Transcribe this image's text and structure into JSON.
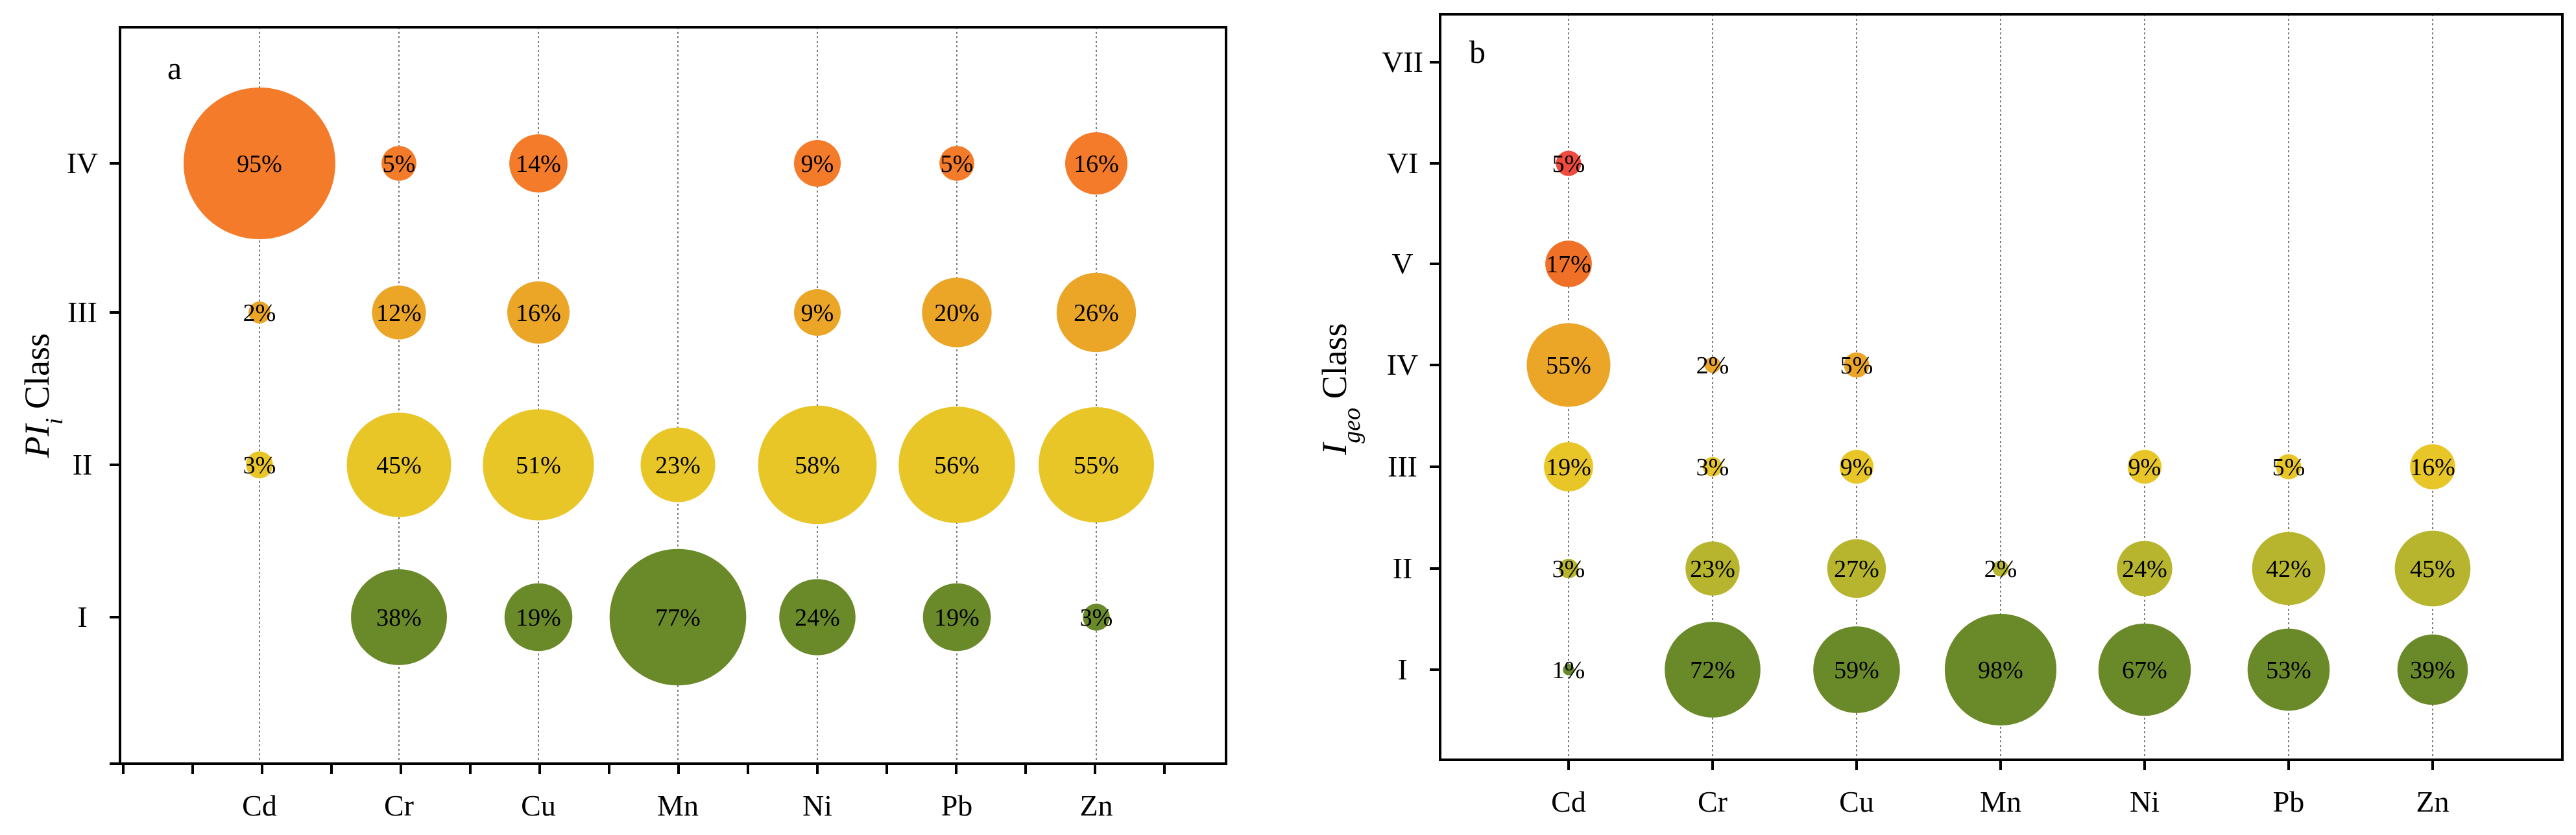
{
  "chart_data": [
    {
      "type": "scatter",
      "subtype": "bubble",
      "panel_label": "a",
      "ylabel_main": "PI",
      "ylabel_sub": "i",
      "ylabel_rest": " Class",
      "xlabel": "",
      "categories": [
        "Cd",
        "Cr",
        "Cu",
        "Mn",
        "Ni",
        "Pb",
        "Zn"
      ],
      "classes": [
        "I",
        "II",
        "III",
        "IV"
      ],
      "class_colors": [
        "#6a8a2a",
        "#e9c627",
        "#eba628",
        "#f47b29"
      ],
      "points": [
        {
          "x": "Cd",
          "class": "IV",
          "value": 95,
          "label": "95%"
        },
        {
          "x": "Cd",
          "class": "III",
          "value": 2,
          "label": "2%"
        },
        {
          "x": "Cd",
          "class": "II",
          "value": 3,
          "label": "3%"
        },
        {
          "x": "Cr",
          "class": "IV",
          "value": 5,
          "label": "5%"
        },
        {
          "x": "Cr",
          "class": "III",
          "value": 12,
          "label": "12%"
        },
        {
          "x": "Cr",
          "class": "II",
          "value": 45,
          "label": "45%"
        },
        {
          "x": "Cr",
          "class": "I",
          "value": 38,
          "label": "38%"
        },
        {
          "x": "Cu",
          "class": "IV",
          "value": 14,
          "label": "14%"
        },
        {
          "x": "Cu",
          "class": "III",
          "value": 16,
          "label": "16%"
        },
        {
          "x": "Cu",
          "class": "II",
          "value": 51,
          "label": "51%"
        },
        {
          "x": "Cu",
          "class": "I",
          "value": 19,
          "label": "19%"
        },
        {
          "x": "Mn",
          "class": "II",
          "value": 23,
          "label": "23%"
        },
        {
          "x": "Mn",
          "class": "I",
          "value": 77,
          "label": "77%"
        },
        {
          "x": "Ni",
          "class": "IV",
          "value": 9,
          "label": "9%"
        },
        {
          "x": "Ni",
          "class": "III",
          "value": 9,
          "label": "9%"
        },
        {
          "x": "Ni",
          "class": "II",
          "value": 58,
          "label": "58%"
        },
        {
          "x": "Ni",
          "class": "I",
          "value": 24,
          "label": "24%"
        },
        {
          "x": "Pb",
          "class": "IV",
          "value": 5,
          "label": "5%"
        },
        {
          "x": "Pb",
          "class": "III",
          "value": 20,
          "label": "20%"
        },
        {
          "x": "Pb",
          "class": "II",
          "value": 56,
          "label": "56%"
        },
        {
          "x": "Pb",
          "class": "I",
          "value": 19,
          "label": "19%"
        },
        {
          "x": "Zn",
          "class": "IV",
          "value": 16,
          "label": "16%"
        },
        {
          "x": "Zn",
          "class": "III",
          "value": 26,
          "label": "26%"
        },
        {
          "x": "Zn",
          "class": "II",
          "value": 55,
          "label": "55%"
        },
        {
          "x": "Zn",
          "class": "I",
          "value": 3,
          "label": "3%"
        }
      ]
    },
    {
      "type": "scatter",
      "subtype": "bubble",
      "panel_label": "b",
      "ylabel_main": "I",
      "ylabel_sub": "geo",
      "ylabel_rest": " Class",
      "xlabel": "",
      "categories": [
        "Cd",
        "Cr",
        "Cu",
        "Mn",
        "Ni",
        "Pb",
        "Zn"
      ],
      "classes": [
        "I",
        "II",
        "III",
        "IV",
        "V",
        "VI",
        "VII"
      ],
      "class_colors": [
        "#6a8a2a",
        "#b6b52d",
        "#e9c627",
        "#eba628",
        "#f07028",
        "#ef4b3e",
        "#e03a3a"
      ],
      "points": [
        {
          "x": "Cd",
          "class": "VI",
          "value": 5,
          "label": "5%"
        },
        {
          "x": "Cd",
          "class": "V",
          "value": 17,
          "label": "17%"
        },
        {
          "x": "Cd",
          "class": "IV",
          "value": 55,
          "label": "55%"
        },
        {
          "x": "Cd",
          "class": "III",
          "value": 19,
          "label": "19%"
        },
        {
          "x": "Cd",
          "class": "II",
          "value": 3,
          "label": "3%"
        },
        {
          "x": "Cd",
          "class": "I",
          "value": 1,
          "label": "1%"
        },
        {
          "x": "Cr",
          "class": "IV",
          "value": 2,
          "label": "2%"
        },
        {
          "x": "Cr",
          "class": "III",
          "value": 3,
          "label": "3%"
        },
        {
          "x": "Cr",
          "class": "II",
          "value": 23,
          "label": "23%"
        },
        {
          "x": "Cr",
          "class": "I",
          "value": 72,
          "label": "72%"
        },
        {
          "x": "Cu",
          "class": "IV",
          "value": 5,
          "label": "5%"
        },
        {
          "x": "Cu",
          "class": "III",
          "value": 9,
          "label": "9%"
        },
        {
          "x": "Cu",
          "class": "II",
          "value": 27,
          "label": "27%"
        },
        {
          "x": "Cu",
          "class": "I",
          "value": 59,
          "label": "59%"
        },
        {
          "x": "Mn",
          "class": "II",
          "value": 2,
          "label": "2%"
        },
        {
          "x": "Mn",
          "class": "I",
          "value": 98,
          "label": "98%"
        },
        {
          "x": "Ni",
          "class": "III",
          "value": 9,
          "label": "9%"
        },
        {
          "x": "Ni",
          "class": "II",
          "value": 24,
          "label": "24%"
        },
        {
          "x": "Ni",
          "class": "I",
          "value": 67,
          "label": "67%"
        },
        {
          "x": "Pb",
          "class": "III",
          "value": 5,
          "label": "5%"
        },
        {
          "x": "Pb",
          "class": "II",
          "value": 42,
          "label": "42%"
        },
        {
          "x": "Pb",
          "class": "I",
          "value": 53,
          "label": "53%"
        },
        {
          "x": "Zn",
          "class": "III",
          "value": 16,
          "label": "16%"
        },
        {
          "x": "Zn",
          "class": "II",
          "value": 45,
          "label": "45%"
        },
        {
          "x": "Zn",
          "class": "I",
          "value": 39,
          "label": "39%"
        }
      ]
    }
  ]
}
